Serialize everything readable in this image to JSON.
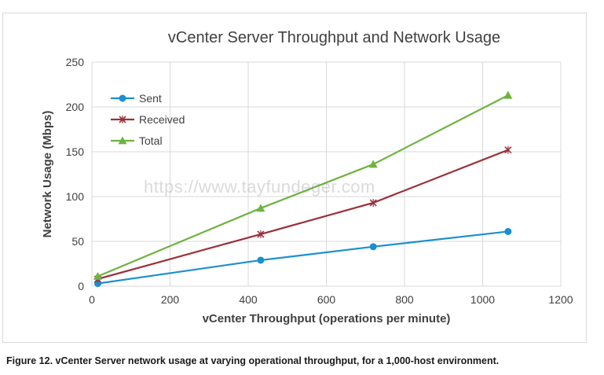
{
  "caption": "Figure 12. vCenter Server network usage at varying operational throughput, for a 1,000-host environment.",
  "watermark": "https://www.tayfundeger.com",
  "chart_data": {
    "type": "line",
    "title": "vCenter Server Throughput and Network Usage",
    "xlabel": "vCenter Throughput (operations per minute)",
    "ylabel": "Network Usage (Mbps)",
    "xlim": [
      0,
      1200
    ],
    "ylim": [
      0,
      250
    ],
    "xticks": [
      0,
      200,
      400,
      600,
      800,
      1000,
      1200
    ],
    "yticks": [
      0,
      50,
      100,
      150,
      200,
      250
    ],
    "grid": true,
    "legend_position": "top-left",
    "series": [
      {
        "name": "Sent",
        "color": "#1a8fd1",
        "marker": "circle",
        "x": [
          15,
          432,
          720,
          1065
        ],
        "y": [
          3,
          29,
          44,
          61
        ]
      },
      {
        "name": "Received",
        "color": "#9b2f3a",
        "marker": "x",
        "x": [
          15,
          432,
          720,
          1065
        ],
        "y": [
          8,
          58,
          93,
          152
        ]
      },
      {
        "name": "Total",
        "color": "#6db33f",
        "marker": "triangle",
        "x": [
          15,
          432,
          720,
          1065
        ],
        "y": [
          11,
          87,
          136,
          213
        ]
      }
    ]
  }
}
